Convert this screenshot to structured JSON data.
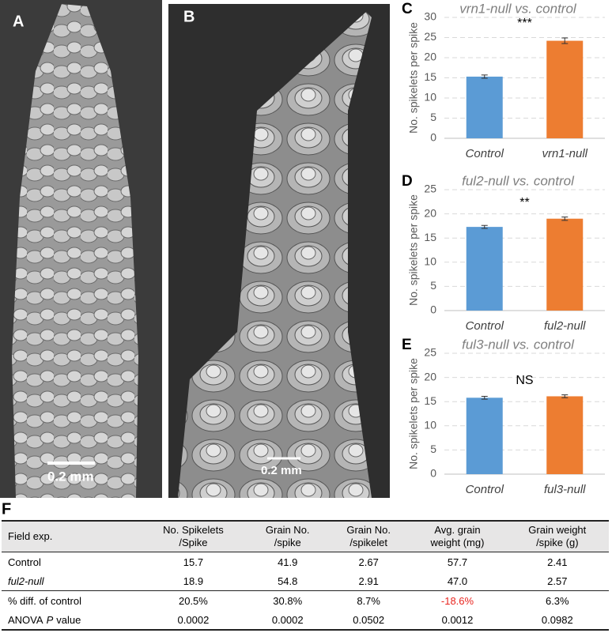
{
  "panels": [
    {
      "label": "A",
      "scale": "0.2 mm"
    },
    {
      "label": "B",
      "scale": "0.2 mm"
    }
  ],
  "chart_data": [
    {
      "type": "bar",
      "label": "C",
      "title": "vrn1-null vs. control",
      "y_label": "No. spikelets per spike",
      "categories": [
        "Control",
        "vrn1-null"
      ],
      "values": [
        15.3,
        24.2
      ],
      "errors": [
        0.4,
        0.7
      ],
      "colors": [
        "#5b9bd5",
        "#ed7d31"
      ],
      "ylim": [
        0,
        30
      ],
      "yticks": [
        0,
        5,
        10,
        15,
        20,
        25,
        30
      ],
      "grid": true,
      "annotation": "***"
    },
    {
      "type": "bar",
      "label": "D",
      "title": "ful2-null vs. control",
      "y_label": "No. spikelets per spike",
      "categories": [
        "Control",
        "ful2-null"
      ],
      "values": [
        17.3,
        19.0
      ],
      "errors": [
        0.3,
        0.35
      ],
      "colors": [
        "#5b9bd5",
        "#ed7d31"
      ],
      "ylim": [
        0,
        25
      ],
      "yticks": [
        0,
        5,
        10,
        15,
        20,
        25
      ],
      "grid": true,
      "annotation": "**"
    },
    {
      "type": "bar",
      "label": "E",
      "title": "ful3-null vs. control",
      "y_label": "No. spikelets per spike",
      "categories": [
        "Control",
        "ful3-null"
      ],
      "values": [
        15.8,
        16.1
      ],
      "errors": [
        0.3,
        0.3
      ],
      "colors": [
        "#5b9bd5",
        "#ed7d31"
      ],
      "ylim": [
        0,
        25
      ],
      "yticks": [
        0,
        5,
        10,
        15,
        20,
        25
      ],
      "grid": true,
      "annotation": "NS"
    }
  ],
  "table": {
    "label": "F",
    "header": [
      [
        "Field exp."
      ],
      [
        "No. Spikelets",
        "/Spike"
      ],
      [
        "Grain No.",
        "/spike"
      ],
      [
        "Grain No.",
        "/spikelet"
      ],
      [
        "Avg. grain",
        "weight (mg)"
      ],
      [
        "Grain weight",
        "/spike (g)"
      ]
    ],
    "rows": [
      [
        "Control",
        "15.7",
        "41.9",
        "2.67",
        "57.7",
        "2.41"
      ],
      [
        {
          "text": "ful2-null",
          "italic": true
        },
        "18.9",
        "54.8",
        "2.91",
        "47.0",
        "2.57"
      ],
      [
        "% diff. of control",
        "20.5%",
        "30.8%",
        "8.7%",
        {
          "text": "-18.6%",
          "color": "#e8251f"
        },
        "6.3%"
      ],
      [
        {
          "parts": [
            {
              "text": "ANOVA"
            },
            {
              "text": "P",
              "italic": true
            },
            {
              "text": "value"
            }
          ]
        },
        "0.0002",
        "0.0002",
        "0.0502",
        "0.0012",
        "0.0982"
      ]
    ]
  }
}
